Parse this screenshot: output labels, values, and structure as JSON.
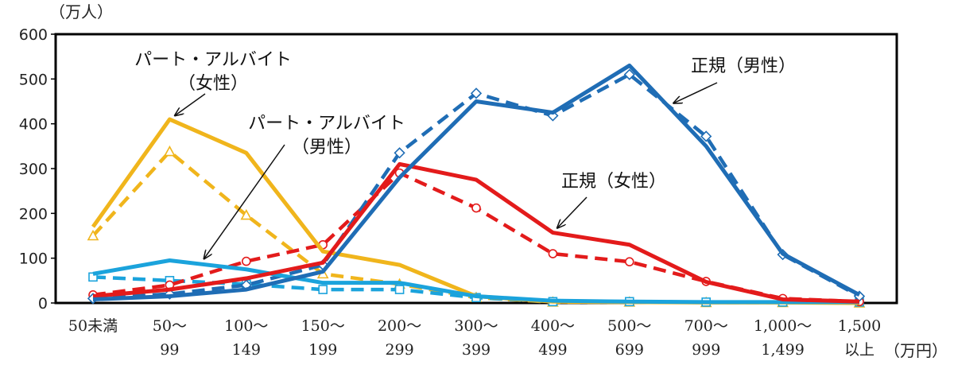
{
  "chart_data": {
    "type": "line",
    "y_unit_label": "（万人）",
    "x_unit_label": "（万円）",
    "ylim": [
      0,
      600
    ],
    "yticks": [
      0,
      100,
      200,
      300,
      400,
      500,
      600
    ],
    "categories": [
      {
        "line1": "50未満",
        "line2": ""
      },
      {
        "line1": "50～",
        "line2": "99"
      },
      {
        "line1": "100～",
        "line2": "149"
      },
      {
        "line1": "150～",
        "line2": "199"
      },
      {
        "line1": "200～",
        "line2": "299"
      },
      {
        "line1": "300～",
        "line2": "399"
      },
      {
        "line1": "400～",
        "line2": "499"
      },
      {
        "line1": "500～",
        "line2": "699"
      },
      {
        "line1": "700～",
        "line2": "999"
      },
      {
        "line1": "1,000～",
        "line2": "1,499"
      },
      {
        "line1": "1,500",
        "line2": "以上"
      }
    ],
    "series": [
      {
        "name": "パート・アルバイト（女性）",
        "year": "solid",
        "color": "#F0B51C",
        "dashed": false,
        "marker": "none",
        "values": [
          170,
          410,
          335,
          115,
          85,
          15,
          3,
          2,
          1,
          1,
          0
        ]
      },
      {
        "name": "パート・アルバイト（女性）",
        "year": "dashed",
        "color": "#F0B51C",
        "dashed": true,
        "marker": "triangle",
        "values": [
          150,
          338,
          196,
          65,
          42,
          12,
          2,
          2,
          1,
          1,
          0
        ]
      },
      {
        "name": "パート・アルバイト（男性）",
        "year": "solid",
        "color": "#1BA3DC",
        "dashed": false,
        "marker": "none",
        "values": [
          65,
          95,
          75,
          45,
          45,
          15,
          5,
          3,
          2,
          2,
          2
        ]
      },
      {
        "name": "パート・アルバイト（男性）",
        "year": "dashed",
        "color": "#1BA3DC",
        "dashed": true,
        "marker": "square",
        "values": [
          58,
          50,
          42,
          30,
          30,
          12,
          3,
          3,
          2,
          2,
          2
        ]
      },
      {
        "name": "正規（女性）",
        "year": "solid",
        "color": "#E31B1B",
        "dashed": false,
        "marker": "none",
        "values": [
          15,
          30,
          55,
          90,
          310,
          275,
          157,
          130,
          47,
          8,
          3
        ]
      },
      {
        "name": "正規（女性）",
        "year": "dashed",
        "color": "#E31B1B",
        "dashed": true,
        "marker": "circle",
        "values": [
          18,
          40,
          93,
          130,
          290,
          212,
          110,
          92,
          48,
          10,
          3
        ]
      },
      {
        "name": "正規（男性）",
        "year": "solid",
        "color": "#1F6DB5",
        "dashed": false,
        "marker": "none",
        "values": [
          8,
          15,
          30,
          70,
          280,
          450,
          425,
          530,
          350,
          110,
          18
        ]
      },
      {
        "name": "正規（男性）",
        "year": "dashed",
        "color": "#1F6DB5",
        "dashed": true,
        "marker": "diamond",
        "values": [
          10,
          20,
          40,
          85,
          335,
          468,
          418,
          510,
          372,
          108,
          15
        ]
      }
    ],
    "annotations": [
      {
        "id": "pa_f",
        "lines": [
          "パート・アルバイト",
          "（女性）"
        ],
        "target": {
          "series": 0,
          "index": 1
        }
      },
      {
        "id": "pa_m",
        "lines": [
          "パート・アルバイト",
          "（男性）"
        ],
        "target": {
          "series": 2,
          "index": 1.4
        }
      },
      {
        "id": "reg_f",
        "lines": [
          "正規（女性）"
        ],
        "target": {
          "series": 4,
          "index": 6
        }
      },
      {
        "id": "reg_m",
        "lines": [
          "正規（男性）"
        ],
        "target": {
          "series": 6,
          "index": 7.5
        }
      }
    ]
  }
}
